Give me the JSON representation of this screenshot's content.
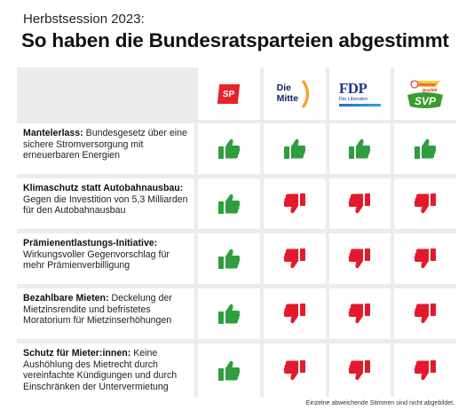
{
  "header": {
    "kicker": "Herbstsession 2023:",
    "title": "So haben die Bundesratsparteien abgestimmt"
  },
  "parties": [
    {
      "key": "sp",
      "name": "SP",
      "color": "#e8232a"
    },
    {
      "key": "mitte",
      "name_line1": "Die",
      "name_line2": "Mitte",
      "color": "#0f1f5c",
      "accent": "#f7a024"
    },
    {
      "key": "fdp",
      "name": "FDP",
      "sub": "Die Liberalen",
      "color": "#1e3a8a"
    },
    {
      "key": "svp",
      "name": "SVP",
      "tag": "Schweizer Qualität",
      "color": "#3a9b2e"
    }
  ],
  "colors": {
    "yes": "#2e9e3e",
    "no": "#e21a2b"
  },
  "rows": [
    {
      "title": "Mantelerlass:",
      "text": " Bundesgesetz über eine sichere Stromversorgung mit erneuerbaren Energien",
      "votes": [
        "yes",
        "yes",
        "yes",
        "yes"
      ]
    },
    {
      "title": "Klimaschutz statt Autobahnausbau:",
      "text": " Gegen die Investition von 5,3 Milliarden für den Autobahnausbau",
      "votes": [
        "yes",
        "no",
        "no",
        "no"
      ]
    },
    {
      "title": "Prämienentlastungs-Initiative:",
      "text": " Wirkungsvoller Gegenvorschlag für mehr Prämienverbilligung",
      "votes": [
        "yes",
        "no",
        "no",
        "no"
      ]
    },
    {
      "title": "Bezahlbare Mieten:",
      "text": " Deckelung der Mietzinsrendite und befristetes Moratorium für Mietzinserhöhungen",
      "votes": [
        "yes",
        "no",
        "no",
        "no"
      ]
    },
    {
      "title": "Schutz für Mieter:innen:",
      "text": " Keine Aushöhlung des Mietrecht durch vereinfachte Kündigungen und durch Einschränken der Untervermietung",
      "votes": [
        "yes",
        "no",
        "no",
        "no"
      ]
    }
  ],
  "footnote": "Einzelne abweichende Stimmen sind nicht abgebildet."
}
